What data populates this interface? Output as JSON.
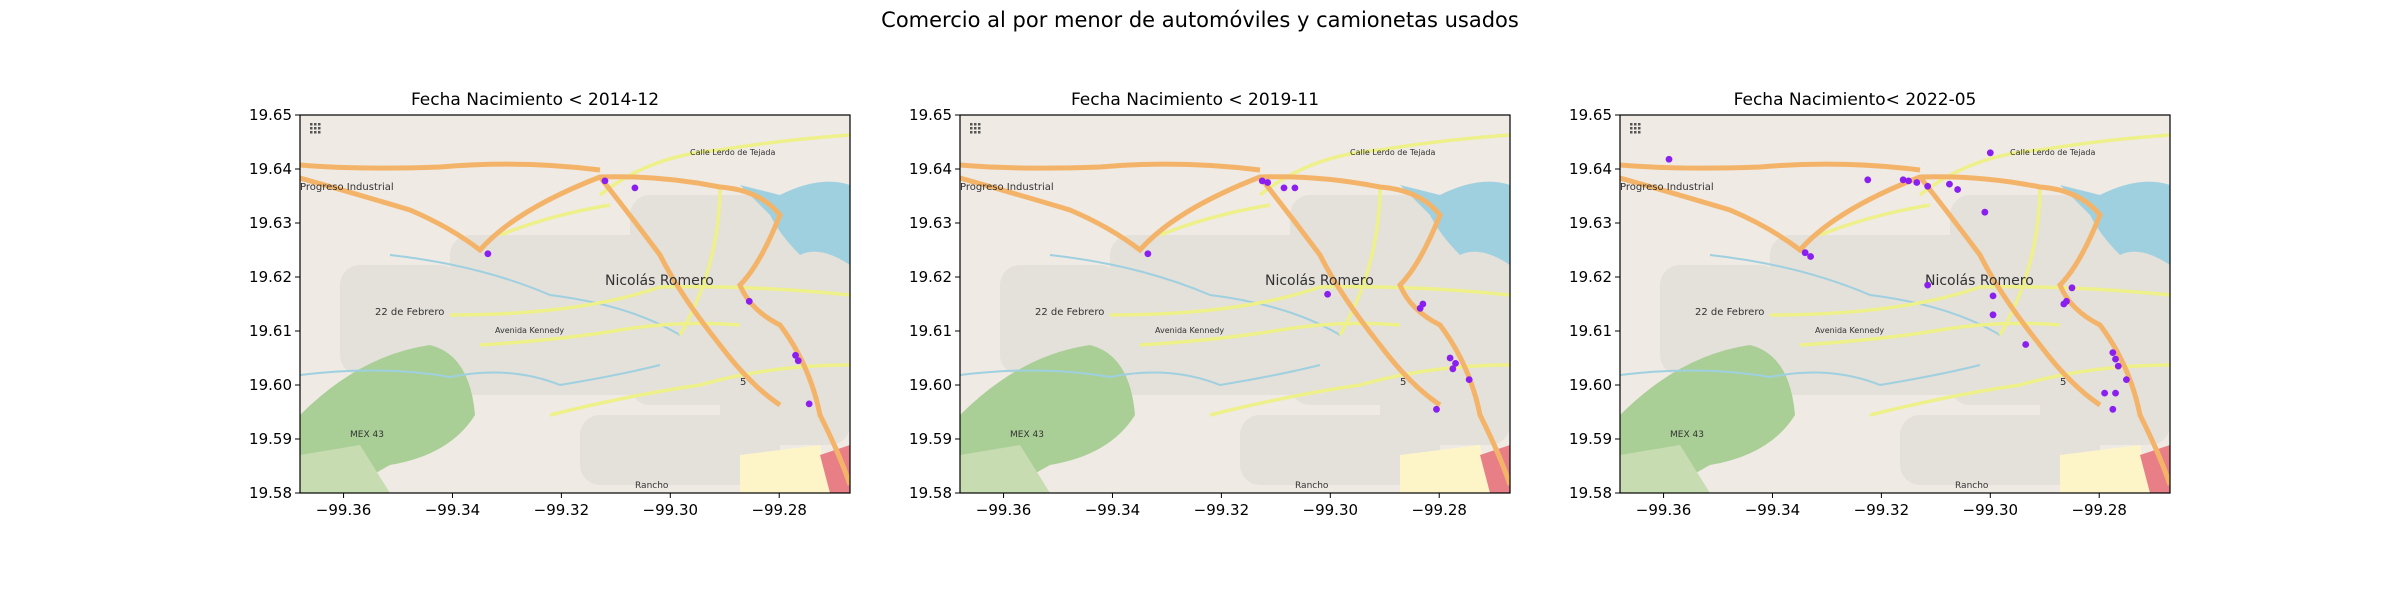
{
  "figure": {
    "suptitle": "Comercio al por menor de automóviles y camionetas usados"
  },
  "map_labels": {
    "progreso": "Progreso Industrial",
    "nicolas": "Nicolás Romero",
    "febrero": "22 de Febrero",
    "kennedy": "Avenida Kennedy",
    "mex43": "MEX 43",
    "lerdo": "Calle Lerdo de Tejada",
    "rancho": "Rancho",
    "cinco": "5"
  },
  "colors": {
    "points": "#8a1ff0",
    "map_bg": "#efeae4",
    "major_road": "#f3b46a",
    "minor_road": "#eef08a",
    "water": "#9fd0e0",
    "park": "#a9cf96"
  },
  "chart_data": [
    {
      "type": "scatter",
      "title": "Fecha Nacimiento < 2014-12",
      "xlim": [
        -99.368,
        -99.267
      ],
      "ylim": [
        19.58,
        19.65
      ],
      "xticks": [
        -99.36,
        -99.34,
        -99.32,
        -99.3,
        -99.28
      ],
      "xtick_labels": [
        "−99.36",
        "−99.34",
        "−99.32",
        "−99.30",
        "−99.28"
      ],
      "yticks": [
        19.58,
        19.59,
        19.6,
        19.61,
        19.62,
        19.63,
        19.64,
        19.65
      ],
      "ytick_labels": [
        "19.58",
        "19.59",
        "19.60",
        "19.61",
        "19.62",
        "19.63",
        "19.64",
        "19.65"
      ],
      "points": [
        {
          "x": -99.3335,
          "y": 19.6243
        },
        {
          "x": -99.312,
          "y": 19.6378
        },
        {
          "x": -99.3065,
          "y": 19.6365
        },
        {
          "x": -99.2855,
          "y": 19.6155
        },
        {
          "x": -99.277,
          "y": 19.6055
        },
        {
          "x": -99.2765,
          "y": 19.6045
        },
        {
          "x": -99.2745,
          "y": 19.5965
        }
      ]
    },
    {
      "type": "scatter",
      "title": "Fecha Nacimiento < 2019-11",
      "xlim": [
        -99.368,
        -99.267
      ],
      "ylim": [
        19.58,
        19.65
      ],
      "xticks": [
        -99.36,
        -99.34,
        -99.32,
        -99.3,
        -99.28
      ],
      "xtick_labels": [
        "−99.36",
        "−99.34",
        "−99.32",
        "−99.30",
        "−99.28"
      ],
      "yticks": [
        19.58,
        19.59,
        19.6,
        19.61,
        19.62,
        19.63,
        19.64,
        19.65
      ],
      "ytick_labels": [
        "19.58",
        "19.59",
        "19.60",
        "19.61",
        "19.62",
        "19.63",
        "19.64",
        "19.65"
      ],
      "points": [
        {
          "x": -99.3335,
          "y": 19.6243
        },
        {
          "x": -99.3125,
          "y": 19.6378
        },
        {
          "x": -99.3115,
          "y": 19.6375
        },
        {
          "x": -99.3085,
          "y": 19.6365
        },
        {
          "x": -99.3065,
          "y": 19.6365
        },
        {
          "x": -99.3005,
          "y": 19.6168
        },
        {
          "x": -99.283,
          "y": 19.615
        },
        {
          "x": -99.2835,
          "y": 19.6142
        },
        {
          "x": -99.278,
          "y": 19.605
        },
        {
          "x": -99.277,
          "y": 19.604
        },
        {
          "x": -99.2775,
          "y": 19.603
        },
        {
          "x": -99.2745,
          "y": 19.601
        },
        {
          "x": -99.2805,
          "y": 19.5955
        }
      ]
    },
    {
      "type": "scatter",
      "title": "Fecha Nacimiento< 2022-05",
      "xlim": [
        -99.368,
        -99.267
      ],
      "ylim": [
        19.58,
        19.65
      ],
      "xticks": [
        -99.36,
        -99.34,
        -99.32,
        -99.3,
        -99.28
      ],
      "xtick_labels": [
        "−99.36",
        "−99.34",
        "−99.32",
        "−99.30",
        "−99.28"
      ],
      "yticks": [
        19.58,
        19.59,
        19.6,
        19.61,
        19.62,
        19.63,
        19.64,
        19.65
      ],
      "ytick_labels": [
        "19.58",
        "19.59",
        "19.60",
        "19.61",
        "19.62",
        "19.63",
        "19.64",
        "19.65"
      ],
      "points": [
        {
          "x": -99.359,
          "y": 19.6418
        },
        {
          "x": -99.334,
          "y": 19.6245
        },
        {
          "x": -99.333,
          "y": 19.6238
        },
        {
          "x": -99.3225,
          "y": 19.638
        },
        {
          "x": -99.316,
          "y": 19.638
        },
        {
          "x": -99.315,
          "y": 19.6378
        },
        {
          "x": -99.3135,
          "y": 19.6375
        },
        {
          "x": -99.3115,
          "y": 19.6368
        },
        {
          "x": -99.3075,
          "y": 19.6372
        },
        {
          "x": -99.306,
          "y": 19.6362
        },
        {
          "x": -99.3,
          "y": 19.643
        },
        {
          "x": -99.301,
          "y": 19.632
        },
        {
          "x": -99.3115,
          "y": 19.6185
        },
        {
          "x": -99.2995,
          "y": 19.6165
        },
        {
          "x": -99.2995,
          "y": 19.613
        },
        {
          "x": -99.2935,
          "y": 19.6075
        },
        {
          "x": -99.285,
          "y": 19.618
        },
        {
          "x": -99.286,
          "y": 19.6155
        },
        {
          "x": -99.2865,
          "y": 19.615
        },
        {
          "x": -99.2775,
          "y": 19.606
        },
        {
          "x": -99.277,
          "y": 19.6048
        },
        {
          "x": -99.2765,
          "y": 19.6035
        },
        {
          "x": -99.275,
          "y": 19.601
        },
        {
          "x": -99.277,
          "y": 19.5985
        },
        {
          "x": -99.279,
          "y": 19.5985
        },
        {
          "x": -99.2775,
          "y": 19.5955
        }
      ]
    }
  ]
}
